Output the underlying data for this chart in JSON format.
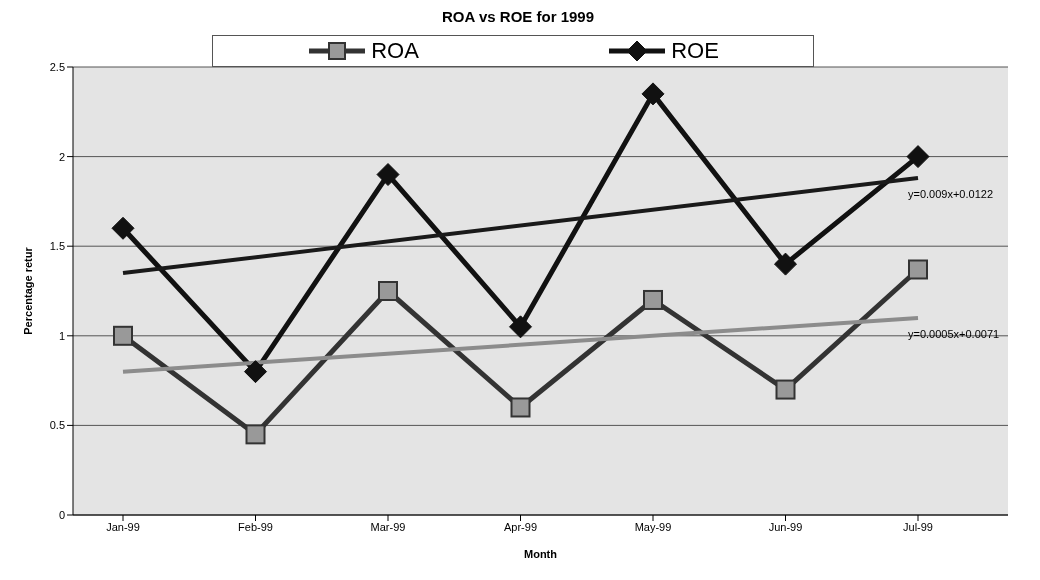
{
  "chart_data": {
    "type": "line",
    "title": "ROA vs ROE for 1999",
    "xlabel": "Month",
    "ylabel": "Percentage retur",
    "categories": [
      "Jan-99",
      "Feb-99",
      "Mar-99",
      "Apr-99",
      "May-99",
      "Jun-99",
      "Jul-99"
    ],
    "series": [
      {
        "name": "ROA",
        "color": "#333333",
        "marker": "square",
        "values": [
          1.0,
          0.45,
          1.25,
          0.6,
          1.2,
          0.7,
          1.37
        ]
      },
      {
        "name": "ROE",
        "color": "#111111",
        "marker": "diamond",
        "values": [
          1.6,
          0.8,
          1.9,
          1.05,
          2.35,
          1.4,
          2.0
        ]
      },
      {
        "type": "line",
        "color": "#1a1a1a",
        "marker": "none",
        "x": [
          "Jan-99",
          "Jul-99"
        ],
        "values": [
          1.35,
          1.88
        ]
      },
      {
        "type": "line",
        "color": "#8c8c8c",
        "marker": "none",
        "x": [
          "Jan-99",
          "Jul-99"
        ],
        "values": [
          0.8,
          1.1
        ]
      }
    ],
    "annotations": [
      {
        "text": "y=0.009x+0.0122",
        "x": "Jul-99",
        "y": 1.88
      },
      {
        "text": "y=0.0005x+0.0071",
        "x": "Jul-99",
        "y": 1.1
      }
    ],
    "ylim": [
      0,
      2.5
    ],
    "yticks": [
      0,
      0.5,
      1,
      1.5,
      2,
      2.5
    ],
    "grid": "y",
    "legend": "top",
    "line_style": "solid"
  }
}
